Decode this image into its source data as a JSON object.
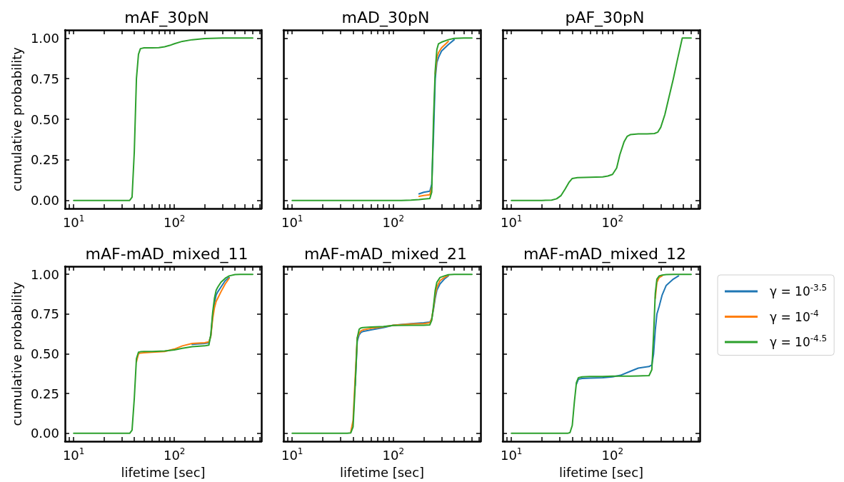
{
  "chart_data": [
    {
      "type": "line",
      "title": "mAF_30pN",
      "ylabel": "cumulative probability",
      "log": "x",
      "xlim": [
        8.2,
        730
      ],
      "ylim": [
        -0.05,
        1.05
      ],
      "xticks": [
        {
          "value": 9,
          "label": null
        },
        {
          "value": 10,
          "label": "10$^{1}$"
        },
        {
          "value": 20,
          "label": null
        },
        {
          "value": 30,
          "label": null
        },
        {
          "value": 40,
          "label": null
        },
        {
          "value": 50,
          "label": null
        },
        {
          "value": 60,
          "label": null
        },
        {
          "value": 70,
          "label": null
        },
        {
          "value": 80,
          "label": null
        },
        {
          "value": 90,
          "label": null
        },
        {
          "value": 100,
          "label": "10$^{2}$"
        },
        {
          "value": 200,
          "label": null
        },
        {
          "value": 300,
          "label": null
        },
        {
          "value": 400,
          "label": null
        },
        {
          "value": 500,
          "label": null
        },
        {
          "value": 600,
          "label": null
        },
        {
          "value": 700,
          "label": null
        }
      ],
      "yticks": [
        {
          "value": 0,
          "label": "0.00"
        },
        {
          "value": 0.25,
          "label": "0.25"
        },
        {
          "value": 0.5,
          "label": "0.50"
        },
        {
          "value": 0.75,
          "label": "0.75"
        },
        {
          "value": 1,
          "label": "1.00"
        }
      ],
      "x": [
        10,
        30,
        36,
        38,
        40,
        42,
        44,
        46,
        50,
        60,
        70,
        80,
        90,
        100,
        120,
        150,
        200,
        300,
        600
      ],
      "series": [
        {
          "color": "#2ca02c",
          "values": [
            0,
            0,
            0,
            0.02,
            0.3,
            0.75,
            0.9,
            0.935,
            0.94,
            0.94,
            0.941,
            0.947,
            0.955,
            0.965,
            0.98,
            0.99,
            0.997,
            1,
            1
          ]
        }
      ]
    },
    {
      "type": "line",
      "title": "mAD_30pN",
      "log": "x",
      "tick_labels": "x",
      "xlim": [
        8.2,
        730
      ],
      "ylim": [
        -0.05,
        1.05
      ],
      "xticks": [
        {
          "value": 9,
          "label": null
        },
        {
          "value": 10,
          "label": "10$^{1}$"
        },
        {
          "value": 20,
          "label": null
        },
        {
          "value": 30,
          "label": null
        },
        {
          "value": 40,
          "label": null
        },
        {
          "value": 50,
          "label": null
        },
        {
          "value": 60,
          "label": null
        },
        {
          "value": 70,
          "label": null
        },
        {
          "value": 80,
          "label": null
        },
        {
          "value": 90,
          "label": null
        },
        {
          "value": 100,
          "label": "10$^{2}$"
        },
        {
          "value": 200,
          "label": null
        },
        {
          "value": 300,
          "label": null
        },
        {
          "value": 400,
          "label": null
        },
        {
          "value": 500,
          "label": null
        },
        {
          "value": 600,
          "label": null
        },
        {
          "value": 700,
          "label": null
        }
      ],
      "yticks": [
        0,
        0.25,
        0.5,
        0.75,
        1
      ],
      "x": [
        10,
        100,
        120,
        150,
        180,
        200,
        230,
        240,
        250,
        260,
        270,
        280,
        300,
        350,
        400,
        500,
        600
      ],
      "series": [
        {
          "color": "#1f77b4",
          "values": [
            null,
            null,
            null,
            null,
            0.04,
            0.05,
            0.057,
            0.1,
            0.4,
            0.75,
            0.85,
            0.88,
            0.92,
            0.96,
            0.99,
            null,
            null
          ]
        },
        {
          "color": "#ff7f0e",
          "values": [
            null,
            null,
            null,
            null,
            0.025,
            0.03,
            0.035,
            0.08,
            null,
            0.78,
            0.88,
            0.91,
            0.94,
            0.98,
            null,
            null,
            null
          ]
        },
        {
          "color": "#2ca02c",
          "values": [
            0,
            0,
            0,
            0.002,
            0.005,
            0.008,
            0.012,
            0.05,
            0.5,
            0.8,
            0.93,
            0.965,
            0.975,
            0.99,
            0.998,
            1,
            1
          ]
        }
      ]
    },
    {
      "type": "line",
      "title": "pAF_30pN",
      "log": "x",
      "tick_labels": "x",
      "xlim": [
        8.2,
        730
      ],
      "ylim": [
        -0.05,
        1.05
      ],
      "xticks": [
        {
          "value": 9,
          "label": null
        },
        {
          "value": 10,
          "label": "10$^{1}$"
        },
        {
          "value": 20,
          "label": null
        },
        {
          "value": 30,
          "label": null
        },
        {
          "value": 40,
          "label": null
        },
        {
          "value": 50,
          "label": null
        },
        {
          "value": 60,
          "label": null
        },
        {
          "value": 70,
          "label": null
        },
        {
          "value": 80,
          "label": null
        },
        {
          "value": 90,
          "label": null
        },
        {
          "value": 100,
          "label": "10$^{2}$"
        },
        {
          "value": 200,
          "label": null
        },
        {
          "value": 300,
          "label": null
        },
        {
          "value": 400,
          "label": null
        },
        {
          "value": 500,
          "label": null
        },
        {
          "value": 600,
          "label": null
        },
        {
          "value": 700,
          "label": null
        }
      ],
      "yticks": [
        0,
        0.25,
        0.5,
        0.75,
        1
      ],
      "x": [
        10,
        20,
        25,
        28,
        31,
        34,
        37,
        40,
        45,
        60,
        80,
        90,
        100,
        110,
        118,
        130,
        140,
        150,
        180,
        220,
        260,
        280,
        300,
        330,
        360,
        400,
        440,
        470,
        490,
        600
      ],
      "series": [
        {
          "color": "#2ca02c",
          "values": [
            0,
            0,
            0.002,
            0.01,
            0.03,
            0.07,
            0.11,
            0.135,
            0.14,
            0.142,
            0.145,
            0.15,
            0.16,
            0.2,
            0.28,
            0.36,
            0.395,
            0.405,
            0.41,
            0.41,
            0.412,
            0.42,
            0.45,
            0.53,
            0.63,
            0.75,
            0.87,
            0.95,
            1,
            1
          ]
        }
      ]
    },
    {
      "type": "line",
      "title": "mAF-mAD_mixed_11",
      "xlabel": "lifetime [sec]",
      "ylabel": "cumulative probability",
      "log": "x",
      "xlim": [
        8.2,
        730
      ],
      "ylim": [
        -0.05,
        1.05
      ],
      "xticks": [
        {
          "value": 9,
          "label": null
        },
        {
          "value": 10,
          "label": "10$^{1}$"
        },
        {
          "value": 20,
          "label": null
        },
        {
          "value": 30,
          "label": null
        },
        {
          "value": 40,
          "label": null
        },
        {
          "value": 50,
          "label": null
        },
        {
          "value": 60,
          "label": null
        },
        {
          "value": 70,
          "label": null
        },
        {
          "value": 80,
          "label": null
        },
        {
          "value": 90,
          "label": null
        },
        {
          "value": 100,
          "label": "10$^{2}$"
        },
        {
          "value": 200,
          "label": null
        },
        {
          "value": 300,
          "label": null
        },
        {
          "value": 400,
          "label": null
        },
        {
          "value": 500,
          "label": null
        },
        {
          "value": 600,
          "label": null
        },
        {
          "value": 700,
          "label": null
        }
      ],
      "yticks": [
        {
          "value": 0,
          "label": "0.00"
        },
        {
          "value": 0.25,
          "label": "0.25"
        },
        {
          "value": 0.5,
          "label": "0.50"
        },
        {
          "value": 0.75,
          "label": "0.75"
        },
        {
          "value": 1,
          "label": "1.00"
        }
      ],
      "x": [
        10,
        30,
        36,
        38,
        40,
        42,
        44,
        46,
        50,
        60,
        80,
        100,
        120,
        150,
        200,
        220,
        230,
        240,
        250,
        260,
        270,
        290,
        320,
        350,
        400,
        450,
        600
      ],
      "series": [
        {
          "color": "#1f77b4",
          "values": [
            null,
            null,
            null,
            null,
            null,
            null,
            null,
            null,
            null,
            null,
            null,
            null,
            null,
            0.56,
            0.565,
            0.57,
            0.615,
            0.74,
            0.82,
            0.87,
            0.89,
            0.92,
            0.96,
            0.98,
            null,
            null,
            null
          ]
        },
        {
          "color": "#ff7f0e",
          "values": [
            null,
            null,
            null,
            null,
            null,
            0.45,
            0.5,
            0.505,
            0.507,
            0.51,
            0.515,
            0.53,
            0.55,
            0.565,
            0.57,
            0.575,
            0.61,
            0.72,
            0.79,
            0.83,
            0.85,
            0.89,
            0.94,
            0.975,
            null,
            null,
            null
          ]
        },
        {
          "color": "#2ca02c",
          "values": [
            0,
            0,
            0,
            0.02,
            0.22,
            0.47,
            0.51,
            0.513,
            0.515,
            0.515,
            0.518,
            0.525,
            0.535,
            0.545,
            0.55,
            0.555,
            0.62,
            0.76,
            0.85,
            0.9,
            0.92,
            0.95,
            0.975,
            0.99,
            0.998,
            1,
            1
          ]
        }
      ]
    },
    {
      "type": "line",
      "title": "mAF-mAD_mixed_21",
      "xlabel": "lifetime [sec]",
      "log": "x",
      "tick_labels": "x",
      "xlim": [
        8.2,
        730
      ],
      "ylim": [
        -0.05,
        1.05
      ],
      "xticks": [
        {
          "value": 9,
          "label": null
        },
        {
          "value": 10,
          "label": "10$^{1}$"
        },
        {
          "value": 20,
          "label": null
        },
        {
          "value": 30,
          "label": null
        },
        {
          "value": 40,
          "label": null
        },
        {
          "value": 50,
          "label": null
        },
        {
          "value": 60,
          "label": null
        },
        {
          "value": 70,
          "label": null
        },
        {
          "value": 80,
          "label": null
        },
        {
          "value": 90,
          "label": null
        },
        {
          "value": 100,
          "label": "10$^{2}$"
        },
        {
          "value": 200,
          "label": null
        },
        {
          "value": 300,
          "label": null
        },
        {
          "value": 400,
          "label": null
        },
        {
          "value": 500,
          "label": null
        },
        {
          "value": 600,
          "label": null
        },
        {
          "value": 700,
          "label": null
        }
      ],
      "yticks": [
        0,
        0.25,
        0.5,
        0.75,
        1
      ],
      "x": [
        10,
        35,
        38,
        40,
        42,
        44,
        46,
        48,
        50,
        60,
        80,
        100,
        150,
        200,
        230,
        240,
        250,
        260,
        270,
        290,
        320,
        350,
        400,
        500,
        600
      ],
      "series": [
        {
          "color": "#1f77b4",
          "values": [
            null,
            null,
            null,
            null,
            0.3,
            0.58,
            0.62,
            0.635,
            0.64,
            0.65,
            0.665,
            0.68,
            0.69,
            0.695,
            0.7,
            0.72,
            0.78,
            0.85,
            0.9,
            0.94,
            0.97,
            0.99,
            null,
            null,
            null
          ]
        },
        {
          "color": "#ff7f0e",
          "values": [
            null,
            null,
            0.01,
            0.08,
            0.35,
            0.6,
            0.63,
            0.645,
            0.65,
            0.66,
            0.67,
            0.68,
            0.687,
            0.69,
            0.695,
            0.72,
            0.79,
            0.87,
            0.92,
            0.96,
            0.98,
            0.993,
            null,
            null,
            null
          ]
        },
        {
          "color": "#2ca02c",
          "values": [
            0,
            0,
            0.003,
            0.04,
            0.3,
            0.6,
            0.655,
            0.663,
            0.665,
            0.668,
            0.672,
            0.678,
            0.68,
            0.68,
            0.682,
            0.71,
            0.8,
            0.9,
            0.95,
            0.98,
            0.99,
            0.997,
            1,
            1,
            1
          ]
        }
      ]
    },
    {
      "type": "line",
      "title": "mAF-mAD_mixed_12",
      "xlabel": "lifetime [sec]",
      "log": "x",
      "tick_labels": "x",
      "legend": "right",
      "xlim": [
        8.2,
        730
      ],
      "ylim": [
        -0.05,
        1.05
      ],
      "xticks": [
        {
          "value": 9,
          "label": null
        },
        {
          "value": 10,
          "label": "10$^{1}$"
        },
        {
          "value": 20,
          "label": null
        },
        {
          "value": 30,
          "label": null
        },
        {
          "value": 40,
          "label": null
        },
        {
          "value": 50,
          "label": null
        },
        {
          "value": 60,
          "label": null
        },
        {
          "value": 70,
          "label": null
        },
        {
          "value": 80,
          "label": null
        },
        {
          "value": 90,
          "label": null
        },
        {
          "value": 100,
          "label": "10$^{2}$"
        },
        {
          "value": 200,
          "label": null
        },
        {
          "value": 300,
          "label": null
        },
        {
          "value": 400,
          "label": null
        },
        {
          "value": 500,
          "label": null
        },
        {
          "value": 600,
          "label": null
        },
        {
          "value": 700,
          "label": null
        }
      ],
      "yticks": [
        0,
        0.25,
        0.5,
        0.75,
        1
      ],
      "x": [
        10,
        36,
        38,
        40,
        42,
        44,
        46,
        50,
        60,
        80,
        100,
        120,
        150,
        180,
        200,
        230,
        245,
        255,
        265,
        275,
        290,
        310,
        340,
        400,
        450,
        500,
        600
      ],
      "series": [
        {
          "name": "γ = 10$^{-3.5}$",
          "color": "#1f77b4",
          "values": [
            null,
            null,
            null,
            null,
            null,
            0.31,
            0.34,
            0.345,
            0.347,
            0.35,
            0.355,
            0.365,
            0.39,
            0.41,
            0.415,
            0.42,
            0.43,
            0.5,
            0.65,
            0.75,
            0.8,
            0.87,
            0.93,
            0.97,
            0.99,
            null,
            null
          ]
        },
        {
          "name": "γ = 10$^{-4}$",
          "color": "#ff7f0e",
          "values": [
            null,
            null,
            null,
            null,
            null,
            null,
            null,
            null,
            null,
            null,
            null,
            null,
            null,
            null,
            null,
            null,
            null,
            null,
            0.85,
            0.95,
            0.98,
            0.99,
            null,
            null,
            null,
            null,
            null
          ]
        },
        {
          "name": "γ = 10$^{-4.5}$",
          "color": "#2ca02c",
          "values": [
            0,
            0,
            0.005,
            0.05,
            0.2,
            0.32,
            0.35,
            0.355,
            0.357,
            0.358,
            0.36,
            0.36,
            0.36,
            0.361,
            0.362,
            0.363,
            0.4,
            0.62,
            0.88,
            0.97,
            0.99,
            0.995,
            0.998,
            1,
            1,
            1,
            1
          ]
        }
      ]
    }
  ]
}
